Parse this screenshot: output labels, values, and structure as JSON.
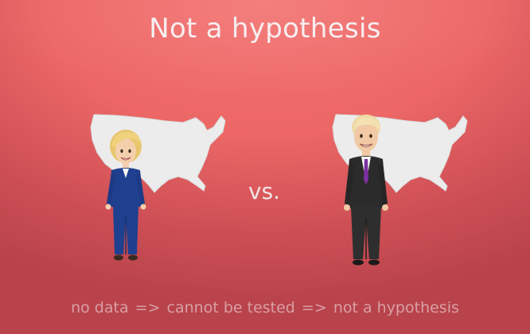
{
  "slide": {
    "title": "Not a hypothesis",
    "vs": "vs.",
    "bottom": {
      "part1": "no data",
      "arrow1": "=>",
      "part2": "cannot be tested",
      "arrow2": "=>",
      "part3": "not a hypothesis"
    }
  },
  "colors": {
    "background_top": "#f2706e",
    "background_bottom": "#b9434b",
    "map_fill": "#ececec",
    "title_text": "#f7eef0",
    "bottom_text": "#d99fa5",
    "left_suit": "#1f3f8f",
    "right_suit": "#2b2b2b",
    "right_tie": "#7b2fa0"
  },
  "figures": {
    "left": {
      "icon": "female-politician-icon",
      "map_icon": "usa-map-icon"
    },
    "right": {
      "icon": "male-politician-icon",
      "map_icon": "usa-map-icon"
    }
  }
}
